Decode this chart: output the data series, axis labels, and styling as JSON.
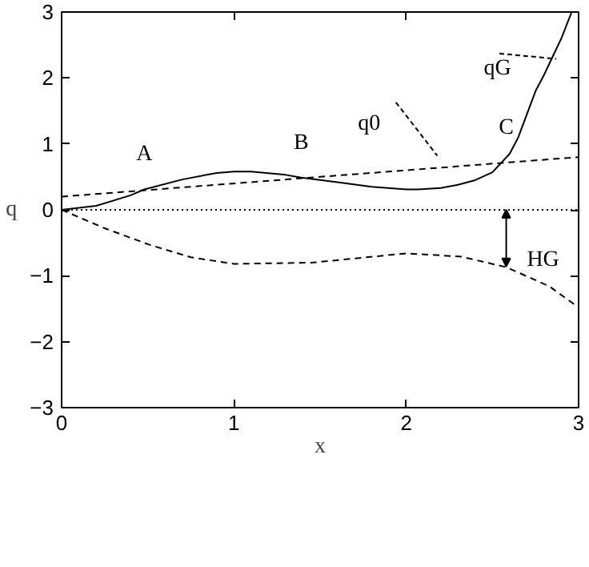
{
  "chart_data": {
    "type": "line",
    "xlabel": "x",
    "ylabel": "q",
    "xlim": [
      0,
      3
    ],
    "ylim": [
      -3,
      3
    ],
    "xticks": [
      0,
      1,
      2,
      3
    ],
    "yticks": [
      -3,
      -2,
      -1,
      0,
      1,
      2,
      3
    ],
    "grid": false,
    "marker": "none",
    "tick_labels": "xy",
    "series": [
      {
        "color": "#000000",
        "line_style": "solid",
        "x": [
          0,
          0.2,
          0.4,
          0.48,
          0.7,
          0.9,
          1.0,
          1.1,
          1.3,
          1.39,
          1.6,
          1.8,
          2.0,
          2.07,
          2.2,
          2.3,
          2.4,
          2.5,
          2.6,
          2.65,
          2.7,
          2.75,
          2.8,
          2.86,
          2.9,
          2.96
        ],
        "values": [
          0,
          0.06,
          0.22,
          0.31,
          0.46,
          0.56,
          0.58,
          0.58,
          0.53,
          0.49,
          0.42,
          0.35,
          0.31,
          0.31,
          0.33,
          0.38,
          0.45,
          0.57,
          0.85,
          1.1,
          1.45,
          1.8,
          2.05,
          2.38,
          2.6,
          3.0
        ]
      },
      {
        "color": "#000000",
        "line_style": "dashed",
        "x": [
          0,
          3
        ],
        "values": [
          0.2,
          0.8
        ]
      },
      {
        "color": "#000000",
        "line_style": "dashed",
        "x": [
          0,
          0.25,
          0.51,
          0.75,
          1.0,
          1.46,
          2.0,
          2.32,
          2.58,
          2.83,
          3.0
        ],
        "values": [
          0,
          -0.28,
          -0.53,
          -0.72,
          -0.82,
          -0.8,
          -0.66,
          -0.71,
          -0.87,
          -1.16,
          -1.48
        ]
      }
    ],
    "ref_lines": [
      {
        "axis": "y",
        "value": 0,
        "line_style": "dotted",
        "color": "#000000"
      }
    ],
    "annotations": [
      {
        "text": "A",
        "x": 0.48,
        "y": 0.31
      },
      {
        "text": "B",
        "x": 1.39,
        "y": 0.49
      },
      {
        "text": "C",
        "x": 2.58,
        "y": 0.76
      },
      "q0",
      {
        "text": "qG",
        "x": 2.87,
        "y": 2.29
      },
      "HG"
    ]
  }
}
